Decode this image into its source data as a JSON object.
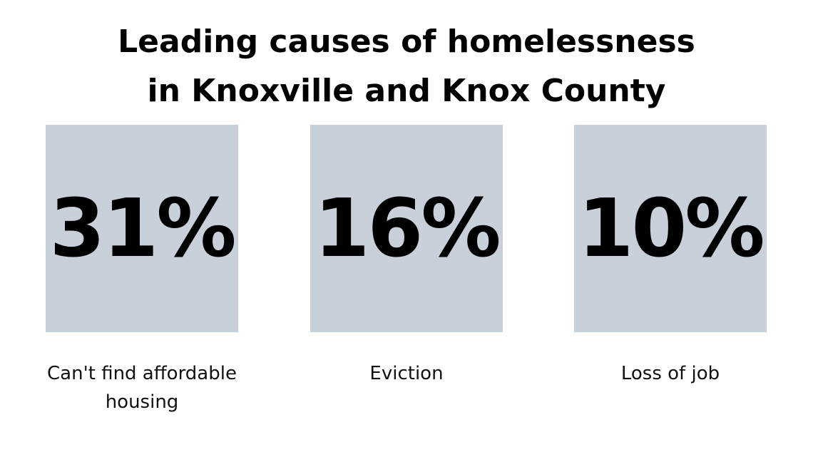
{
  "title": [
    "Leading causes of homelessness",
    "in Knoxville and Knox County"
  ],
  "stats": [
    {
      "value": "31%",
      "label": "Can't find affordable housing"
    },
    {
      "value": "16%",
      "label": "Eviction"
    },
    {
      "value": "10%",
      "label": "Loss of job"
    }
  ]
}
